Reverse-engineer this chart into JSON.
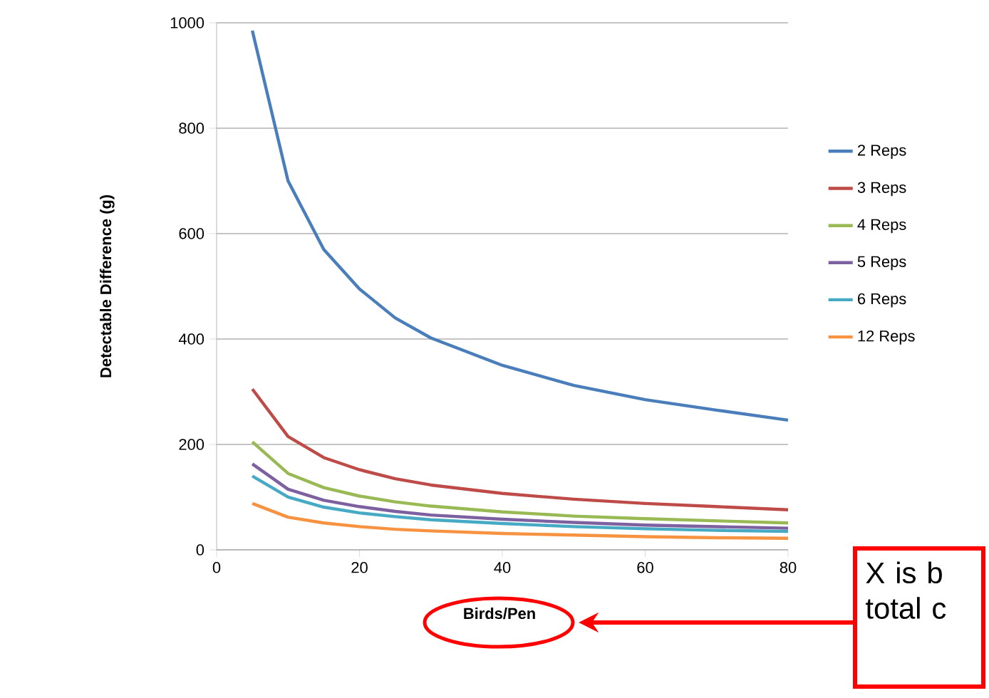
{
  "chart_data": {
    "type": "line",
    "xlabel": "Birds/Pen",
    "ylabel": "Detectable Difference (g)",
    "x": [
      5,
      10,
      15,
      20,
      25,
      30,
      40,
      50,
      60,
      70,
      80
    ],
    "series": [
      {
        "name": "2 Reps",
        "color": "#4a7ebb",
        "values": [
          985,
          700,
          570,
          495,
          440,
          402,
          350,
          312,
          285,
          265,
          246
        ]
      },
      {
        "name": "3 Reps",
        "color": "#be4b48",
        "values": [
          305,
          215,
          175,
          152,
          135,
          123,
          107,
          96,
          88,
          82,
          76
        ]
      },
      {
        "name": "4 Reps",
        "color": "#98b954",
        "values": [
          205,
          145,
          118,
          102,
          91,
          83,
          72,
          64,
          59,
          55,
          51
        ]
      },
      {
        "name": "5 Reps",
        "color": "#7d60a0",
        "values": [
          163,
          115,
          94,
          82,
          73,
          66,
          58,
          52,
          47,
          44,
          41
        ]
      },
      {
        "name": "6 Reps",
        "color": "#46aac5",
        "values": [
          140,
          100,
          81,
          70,
          63,
          57,
          50,
          44,
          40,
          37,
          35
        ]
      },
      {
        "name": "12 Reps",
        "color": "#f69240",
        "values": [
          88,
          62,
          51,
          44,
          39,
          36,
          31,
          28,
          25,
          23,
          22
        ]
      }
    ],
    "xlim": [
      0,
      80
    ],
    "xticks": [
      0,
      20,
      40,
      60,
      80
    ],
    "ylim": [
      0,
      1000
    ],
    "yticks": [
      0,
      200,
      400,
      600,
      800,
      1000
    ],
    "grid": "y",
    "legend": "right",
    "marker": "none",
    "line_style": "solid",
    "annotations": [
      "X is b total c"
    ]
  }
}
